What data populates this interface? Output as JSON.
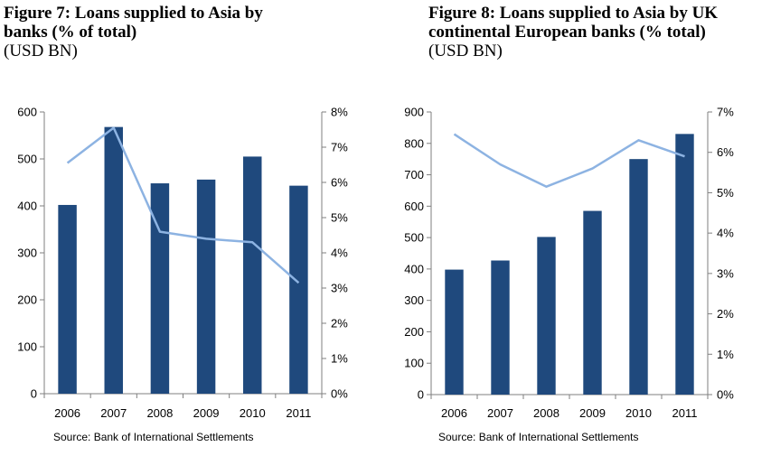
{
  "figures": [
    {
      "title_line1": "Figure 7: Loans supplied to Asia by",
      "title_line2": "banks (% of total)",
      "unit": "(USD BN)",
      "source": "Source: Bank of International Settlements"
    },
    {
      "title_line1": "Figure 8: Loans supplied to Asia by UK",
      "title_line2": "continental European banks (% total)",
      "unit": "(USD BN)",
      "source": "Source: Bank of International Settlements"
    }
  ],
  "colors": {
    "bar": "#1f497d",
    "line": "#8db3e2",
    "axis": "#7f7f7f"
  },
  "chart_data": [
    {
      "type": "bar",
      "categories": [
        "2006",
        "2007",
        "2008",
        "2009",
        "2010",
        "2011"
      ],
      "series": [
        {
          "values": [
            402,
            568,
            448,
            456,
            505,
            443
          ],
          "axis": "left"
        },
        {
          "type": "line",
          "values": [
            6.55,
            7.55,
            4.6,
            4.4,
            4.3,
            3.15
          ],
          "axis": "right"
        }
      ],
      "ylim": [
        0,
        600
      ],
      "yticks": [
        0,
        100,
        200,
        300,
        400,
        500,
        600
      ],
      "ylim_right": [
        0,
        8
      ],
      "yticks_right": [
        "0%",
        "1%",
        "2%",
        "3%",
        "4%",
        "5%",
        "6%",
        "7%",
        "8%"
      ],
      "grid": false,
      "legend": "none"
    },
    {
      "type": "bar",
      "categories": [
        "2006",
        "2007",
        "2008",
        "2009",
        "2010",
        "2011"
      ],
      "series": [
        {
          "values": [
            398,
            427,
            502,
            585,
            750,
            830
          ],
          "axis": "left"
        },
        {
          "type": "line",
          "values": [
            6.45,
            5.7,
            5.15,
            5.6,
            6.3,
            5.9
          ],
          "axis": "right"
        }
      ],
      "ylim": [
        0,
        900
      ],
      "yticks": [
        0,
        100,
        200,
        300,
        400,
        500,
        600,
        700,
        800,
        900
      ],
      "ylim_right": [
        0,
        7
      ],
      "yticks_right": [
        "0%",
        "1%",
        "2%",
        "3%",
        "4%",
        "5%",
        "6%",
        "7%"
      ],
      "grid": false,
      "legend": "none"
    }
  ]
}
